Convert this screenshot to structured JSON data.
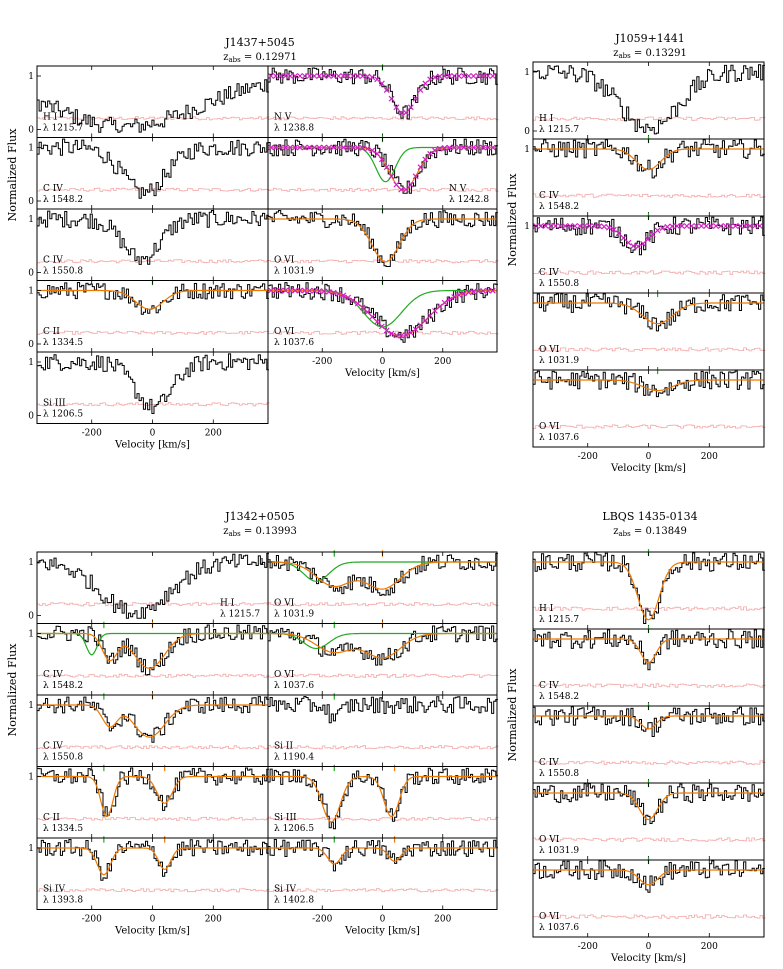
{
  "colors": {
    "data": "#000000",
    "error": "#f4a6a6",
    "model": "#f07800",
    "component": "#22aa22",
    "crosses": "#d020c0",
    "marker_green": "#22aa22",
    "marker_orange": "#f07800"
  },
  "axis": {
    "ylabel": "Normalized Flux",
    "xlabel": "Velocity [km/s]",
    "xlim": [
      -380,
      380
    ]
  },
  "chart_data": [
    {
      "type": "line",
      "name": "J1437+5045",
      "title": "J1437+5045",
      "zabs": "0.12971",
      "panels": [
        {
          "ion": "H I",
          "wave": "1215.7",
          "col": 0,
          "row": 0,
          "lines": [
            [
              -95,
              245,
              0.95
            ]
          ],
          "model": false,
          "markers": [],
          "yticks": [
            0,
            1
          ]
        },
        {
          "ion": "C IV",
          "wave": "1548.2",
          "col": 0,
          "row": 1,
          "lines": [
            [
              -30,
              70,
              0.85
            ]
          ],
          "model": false,
          "markers": [],
          "yticks": [
            0,
            1
          ]
        },
        {
          "ion": "C IV",
          "wave": "1550.8",
          "col": 0,
          "row": 2,
          "lines": [
            [
              -40,
              60,
              0.75
            ]
          ],
          "model": false,
          "markers": [],
          "yticks": [
            0,
            1
          ]
        },
        {
          "ion": "C II",
          "wave": "1334.5",
          "col": 0,
          "row": 3,
          "lines": [
            [
              -10,
              45,
              0.35
            ]
          ],
          "model": true,
          "markers": [
            {
              "v": 0,
              "color": "green"
            }
          ],
          "yticks": [
            0,
            1
          ]
        },
        {
          "ion": "Si III",
          "wave": "1206.5",
          "col": 0,
          "row": 4,
          "lines": [
            [
              0,
              60,
              0.85
            ]
          ],
          "model": false,
          "markers": [],
          "yticks": [
            0,
            1
          ]
        },
        {
          "ion": "N V",
          "wave": "1238.8",
          "col": 1,
          "row": 0,
          "lines": [
            [
              70,
              40,
              0.7
            ]
          ],
          "model": false,
          "crosses": true,
          "markers": [
            {
              "v": 0,
              "color": "green"
            }
          ],
          "yticks": []
        },
        {
          "ion": "N V",
          "wave": "1242.8",
          "col": 1,
          "row": 1,
          "lines": [
            [
              70,
              45,
              0.8
            ]
          ],
          "model": true,
          "component": true,
          "crosses": true,
          "markers": [
            {
              "v": 0,
              "color": "green"
            }
          ],
          "yticks": []
        },
        {
          "ion": "O VI",
          "wave": "1031.9",
          "col": 1,
          "row": 2,
          "lines": [
            [
              10,
              45,
              0.8
            ]
          ],
          "model": true,
          "markers": [
            {
              "v": 0,
              "color": "green"
            }
          ],
          "yticks": []
        },
        {
          "ion": "O VI",
          "wave": "1037.6",
          "col": 1,
          "row": 3,
          "lines": [
            [
              60,
              90,
              0.85
            ]
          ],
          "model": true,
          "component": true,
          "crosses": true,
          "markers": [
            {
              "v": 0,
              "color": "green"
            }
          ],
          "yticks": []
        }
      ],
      "xticks": [
        -200,
        0,
        200
      ],
      "xtick_labels": [
        "-200",
        "0",
        "200"
      ]
    },
    {
      "type": "line",
      "name": "J1059+1441",
      "title": "J1059+1441",
      "zabs": "0.13291",
      "panels": [
        {
          "ion": "H I",
          "wave": "1215.7",
          "col": 0,
          "row": 0,
          "lines": [
            [
              0,
              95,
              0.95
            ]
          ],
          "model": false,
          "markers": [],
          "yticks": [
            0,
            1
          ]
        },
        {
          "ion": "C IV",
          "wave": "1548.2",
          "col": 0,
          "row": 1,
          "lines": [
            [
              0,
              40,
              0.35
            ]
          ],
          "model": true,
          "markers": [
            {
              "v": 0,
              "color": "green"
            }
          ],
          "yticks": [
            1
          ]
        },
        {
          "ion": "C IV",
          "wave": "1550.8",
          "col": 0,
          "row": 2,
          "lines": [
            [
              -40,
              40,
              0.35
            ]
          ],
          "model": false,
          "crosses": true,
          "markers": [
            {
              "v": 0,
              "color": "green"
            }
          ],
          "yticks": [
            1
          ]
        },
        {
          "ion": "O VI",
          "wave": "1031.9",
          "col": 0,
          "row": 3,
          "lines": [
            [
              30,
              50,
              0.35
            ]
          ],
          "model": true,
          "markers": [
            {
              "v": 30,
              "color": "green"
            }
          ],
          "yticks": []
        },
        {
          "ion": "O VI",
          "wave": "1037.6",
          "col": 0,
          "row": 4,
          "lines": [
            [
              30,
              50,
              0.18
            ]
          ],
          "model": true,
          "markers": [
            {
              "v": 30,
              "color": "green"
            }
          ],
          "yticks": []
        }
      ],
      "xticks": [
        -200,
        0,
        200
      ],
      "xtick_labels": [
        "-200",
        "0",
        "200"
      ]
    },
    {
      "type": "line",
      "name": "J1342+0505",
      "title": "J1342+0505",
      "zabs": "0.13993",
      "panels": [
        {
          "ion": "H I",
          "wave": "1215.7",
          "col": 0,
          "row": 0,
          "lines": [
            [
              -60,
              110,
              0.95
            ]
          ],
          "model": false,
          "markers": [],
          "yticks": [
            0,
            1
          ]
        },
        {
          "ion": "C IV",
          "wave": "1548.2",
          "col": 0,
          "row": 1,
          "lines": [
            [
              -140,
              25,
              0.5
            ],
            [
              -10,
              50,
              0.65
            ]
          ],
          "model": true,
          "component": true,
          "markers": [
            {
              "v": -160,
              "color": "green"
            },
            {
              "v": 0,
              "color": "orange"
            }
          ],
          "yticks": [
            1
          ]
        },
        {
          "ion": "C IV",
          "wave": "1550.8",
          "col": 0,
          "row": 2,
          "lines": [
            [
              -140,
              25,
              0.4
            ],
            [
              -10,
              50,
              0.6
            ]
          ],
          "model": true,
          "markers": [
            {
              "v": -160,
              "color": "green"
            },
            {
              "v": 0,
              "color": "orange"
            }
          ],
          "yticks": [
            1
          ]
        },
        {
          "ion": "C II",
          "wave": "1334.5",
          "col": 0,
          "row": 3,
          "lines": [
            [
              -150,
              20,
              0.75
            ],
            [
              40,
              25,
              0.5
            ]
          ],
          "model": true,
          "markers": [
            {
              "v": -160,
              "color": "green"
            },
            {
              "v": 40,
              "color": "orange"
            }
          ],
          "yticks": [
            1
          ]
        },
        {
          "ion": "Si IV",
          "wave": "1393.8",
          "col": 0,
          "row": 4,
          "lines": [
            [
              -160,
              22,
              0.5
            ],
            [
              40,
              20,
              0.4
            ]
          ],
          "model": true,
          "markers": [
            {
              "v": -160,
              "color": "green"
            },
            {
              "v": 40,
              "color": "orange"
            }
          ],
          "yticks": [
            1
          ]
        },
        {
          "ion": "O VI",
          "wave": "1031.9",
          "col": 1,
          "row": 0,
          "lines": [
            [
              -160,
              60,
              0.45
            ],
            [
              0,
              60,
              0.5
            ]
          ],
          "model": true,
          "component": true,
          "markers": [
            {
              "v": -160,
              "color": "green"
            },
            {
              "v": 0,
              "color": "orange"
            }
          ],
          "yticks": [
            1
          ]
        },
        {
          "ion": "O VI",
          "wave": "1037.6",
          "col": 1,
          "row": 1,
          "lines": [
            [
              -160,
              60,
              0.35
            ],
            [
              0,
              60,
              0.45
            ]
          ],
          "model": true,
          "component": true,
          "markers": [
            {
              "v": -160,
              "color": "green"
            },
            {
              "v": 0,
              "color": "orange"
            }
          ],
          "yticks": []
        },
        {
          "ion": "Si II",
          "wave": "1190.4",
          "col": 1,
          "row": 2,
          "lines": [
            [
              -160,
              20,
              0.25
            ]
          ],
          "model": false,
          "markers": [
            {
              "v": -160,
              "color": "green"
            }
          ],
          "yticks": []
        },
        {
          "ion": "Si III",
          "wave": "1206.5",
          "col": 1,
          "row": 3,
          "lines": [
            [
              -170,
              30,
              0.85
            ],
            [
              30,
              25,
              0.75
            ]
          ],
          "model": true,
          "markers": [
            {
              "v": -160,
              "color": "green"
            },
            {
              "v": 40,
              "color": "orange"
            }
          ],
          "yticks": []
        },
        {
          "ion": "Si IV",
          "wave": "1402.8",
          "col": 1,
          "row": 4,
          "lines": [
            [
              -160,
              22,
              0.3
            ],
            [
              40,
              20,
              0.25
            ]
          ],
          "model": true,
          "markers": [
            {
              "v": -160,
              "color": "green"
            },
            {
              "v": 40,
              "color": "orange"
            }
          ],
          "yticks": []
        }
      ],
      "xticks": [
        -200,
        0,
        200
      ],
      "xtick_labels": [
        "-200",
        "0",
        "200"
      ]
    },
    {
      "type": "line",
      "name": "LBQS 1435-0134",
      "title": "LBQS 1435-0134",
      "zabs": "0.13849",
      "panels": [
        {
          "ion": "H I",
          "wave": "1215.7",
          "col": 0,
          "row": 0,
          "lines": [
            [
              0,
              35,
              0.98
            ]
          ],
          "model": true,
          "markers": [
            {
              "v": 0,
              "color": "green"
            }
          ],
          "yticks": []
        },
        {
          "ion": "C IV",
          "wave": "1548.2",
          "col": 0,
          "row": 1,
          "lines": [
            [
              0,
              25,
              0.4
            ]
          ],
          "model": true,
          "markers": [
            {
              "v": 0,
              "color": "green"
            }
          ],
          "yticks": []
        },
        {
          "ion": "C IV",
          "wave": "1550.8",
          "col": 0,
          "row": 2,
          "lines": [
            [
              0,
              25,
              0.22
            ]
          ],
          "model": true,
          "markers": [
            {
              "v": 0,
              "color": "green"
            }
          ],
          "yticks": []
        },
        {
          "ion": "O VI",
          "wave": "1031.9",
          "col": 0,
          "row": 3,
          "lines": [
            [
              0,
              30,
              0.45
            ]
          ],
          "model": true,
          "markers": [
            {
              "v": 0,
              "color": "green"
            }
          ],
          "yticks": []
        },
        {
          "ion": "O VI",
          "wave": "1037.6",
          "col": 0,
          "row": 4,
          "lines": [
            [
              0,
              30,
              0.25
            ]
          ],
          "model": true,
          "markers": [
            {
              "v": 0,
              "color": "green"
            }
          ],
          "yticks": []
        }
      ],
      "xticks": [
        -200,
        0,
        200
      ],
      "xtick_labels": [
        "-200",
        "0",
        "200"
      ]
    }
  ]
}
